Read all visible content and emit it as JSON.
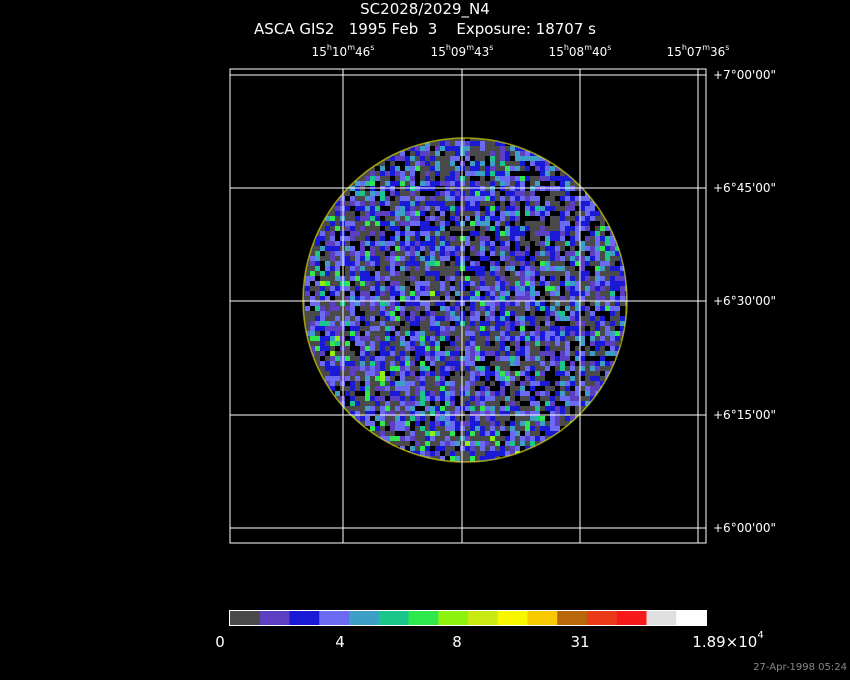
{
  "header": {
    "title": "SC2028/2029_N4",
    "subtitle": "ASCA GIS2   1995 Feb  3    Exposure: 18707 s"
  },
  "ra_labels": [
    {
      "h": "15",
      "m": "10",
      "s": "46"
    },
    {
      "h": "15",
      "m": "09",
      "s": "43"
    },
    {
      "h": "15",
      "m": "08",
      "s": "40"
    },
    {
      "h": "15",
      "m": "07",
      "s": "36"
    }
  ],
  "dec_labels": [
    "+7°00'00\"",
    "+6°45'00\"",
    "+6°30'00\"",
    "+6°15'00\"",
    "+6°00'00\""
  ],
  "colorbar": {
    "colors": [
      "#4a4a4a",
      "#5d3fc2",
      "#1a1ad6",
      "#6a6af2",
      "#3d9ec6",
      "#1ac68a",
      "#2ee84e",
      "#8ef20f",
      "#c8ea12",
      "#f8f700",
      "#f8c800",
      "#b8680a",
      "#ea3a1a",
      "#f81a1a",
      "#e0e0e0",
      "#ffffff"
    ],
    "tick_labels": [
      "0",
      "4",
      "8",
      "31"
    ],
    "max_label": "1.89×10",
    "max_exp": "4"
  },
  "timestamp": "27-Apr-1998 05:24"
}
